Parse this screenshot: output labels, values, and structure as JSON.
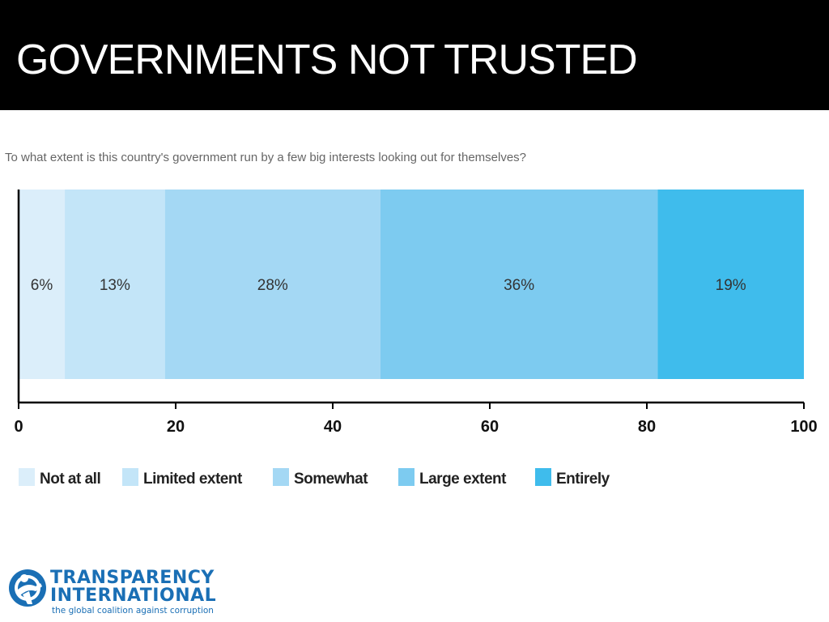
{
  "header": {
    "title": "GOVERNMENTS NOT TRUSTED"
  },
  "chart_data": {
    "type": "bar",
    "orientation": "horizontal-stacked",
    "title": "To what extent is this country's government run by a few big interests looking out for themselves?",
    "xlim": [
      0,
      100
    ],
    "xticks": [
      0,
      20,
      40,
      60,
      80,
      100
    ],
    "series": [
      {
        "name": "Not at all",
        "value": 6,
        "label": "6%",
        "color": "#dbeefa"
      },
      {
        "name": "Limited extent",
        "value": 13,
        "label": "13%",
        "color": "#c3e5f8"
      },
      {
        "name": "Somewhat",
        "value": 28,
        "label": "28%",
        "color": "#a4d8f4"
      },
      {
        "name": "Large extent",
        "value": 36,
        "label": "36%",
        "color": "#7dcbf0"
      },
      {
        "name": "Entirely",
        "value": 19,
        "label": "19%",
        "color": "#3fbcec"
      }
    ],
    "legend_position": "bottom"
  },
  "logo": {
    "line1": "TRANSPARENCY",
    "line2": "INTERNATIONAL",
    "tagline": "the global coalition against corruption",
    "color": "#1a6fb5"
  }
}
